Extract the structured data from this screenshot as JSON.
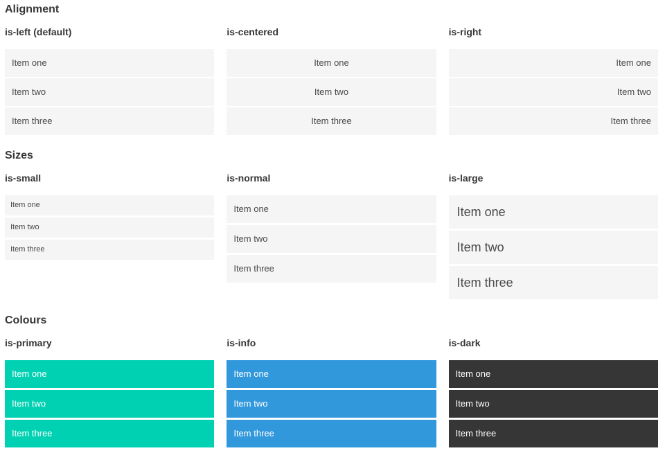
{
  "colors": {
    "primary": "#00d1b2",
    "info": "#3298dc",
    "dark": "#363636",
    "item_bg": "#f5f5f5",
    "item_text": "#4a4a4a",
    "heading": "#363636"
  },
  "sections": [
    {
      "title": "Alignment",
      "columns": [
        {
          "label": "is-left (default)",
          "variant": "left",
          "items": [
            "Item one",
            "Item two",
            "Item three"
          ]
        },
        {
          "label": "is-centered",
          "variant": "centered",
          "items": [
            "Item one",
            "Item two",
            "Item three"
          ]
        },
        {
          "label": "is-right",
          "variant": "right",
          "items": [
            "Item one",
            "Item two",
            "Item three"
          ]
        }
      ]
    },
    {
      "title": "Sizes",
      "columns": [
        {
          "label": "is-small",
          "variant": "small",
          "items": [
            "Item one",
            "Item two",
            "Item three"
          ]
        },
        {
          "label": "is-normal",
          "variant": "normal",
          "items": [
            "Item one",
            "Item two",
            "Item three"
          ]
        },
        {
          "label": "is-large",
          "variant": "large",
          "items": [
            "Item one",
            "Item two",
            "Item three"
          ]
        }
      ]
    },
    {
      "title": "Colours",
      "columns": [
        {
          "label": "is-primary",
          "variant": "primary",
          "items": [
            "Item one",
            "Item two",
            "Item three"
          ]
        },
        {
          "label": "is-info",
          "variant": "info",
          "items": [
            "Item one",
            "Item two",
            "Item three"
          ]
        },
        {
          "label": "is-dark",
          "variant": "dark",
          "items": [
            "Item one",
            "Item two",
            "Item three"
          ]
        }
      ]
    }
  ]
}
